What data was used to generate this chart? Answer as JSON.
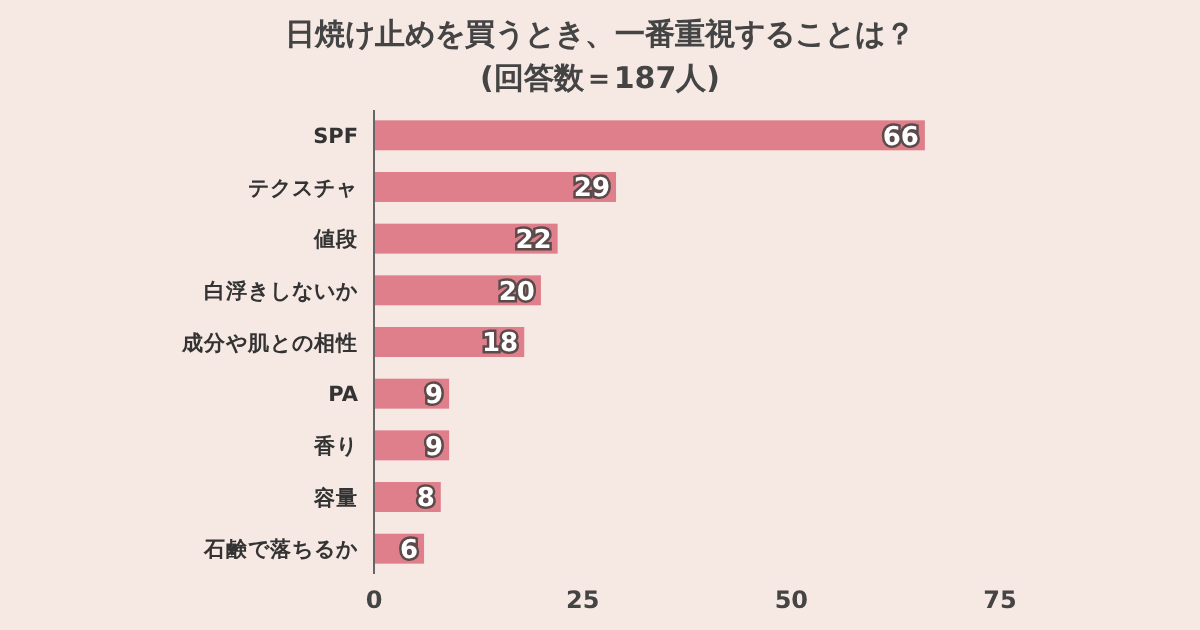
{
  "chart_data": {
    "type": "bar",
    "orientation": "horizontal",
    "title": "日焼け止めを買うとき、一番重視することは？",
    "subtitle": "(回答数＝187人)",
    "categories": [
      "SPF",
      "テクスチャ",
      "値段",
      "白浮きしないか",
      "成分や肌との相性",
      "PA",
      "香り",
      "容量",
      "石鹸で落ちるか"
    ],
    "values": [
      66,
      29,
      22,
      20,
      18,
      9,
      9,
      8,
      6
    ],
    "color": "#de7f8b",
    "xlim": [
      0,
      75
    ],
    "xticks": [
      0,
      25,
      50,
      75
    ],
    "data_labels": true
  }
}
